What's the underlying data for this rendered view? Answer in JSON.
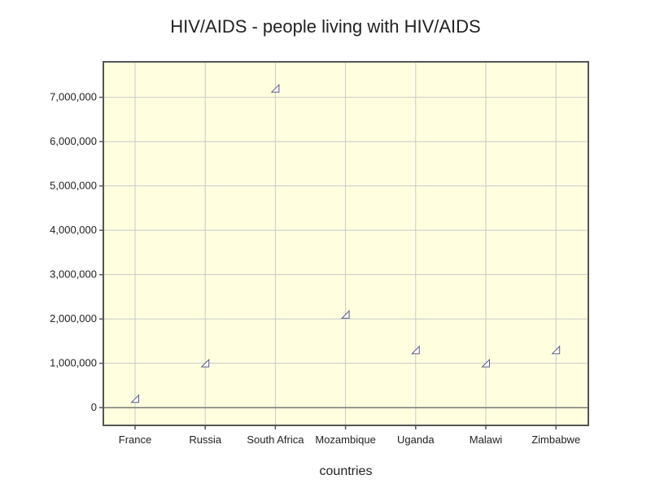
{
  "chart_data": {
    "type": "scatter",
    "title": "HIV/AIDS - people living with HIV/AIDS",
    "xlabel": "countries",
    "ylabel": "",
    "categories": [
      "France",
      "Russia",
      "South Africa",
      "Mozambique",
      "Uganda",
      "Malawi",
      "Zimbabwe"
    ],
    "series": [
      {
        "values": [
          200000,
          1000000,
          7200000,
          2100000,
          1300000,
          1000000,
          1300000
        ]
      }
    ],
    "yticks": [
      0,
      1000000,
      2000000,
      3000000,
      4000000,
      5000000,
      6000000,
      7000000
    ],
    "ytick_labels": [
      "0",
      "1,000,000",
      "2,000,000",
      "3,000,000",
      "4,000,000",
      "5,000,000",
      "6,000,000",
      "7,000,000"
    ],
    "ylim": [
      -400000,
      7800000
    ],
    "grid": true,
    "marker": "triangle",
    "colors": {
      "plot_background": "#ffffe0",
      "grid": "#c8c8c8",
      "frame": "#555555",
      "marker_stroke": "#5a5a8a",
      "marker_fill": "#ffffff",
      "zero_line": "#777777"
    }
  }
}
